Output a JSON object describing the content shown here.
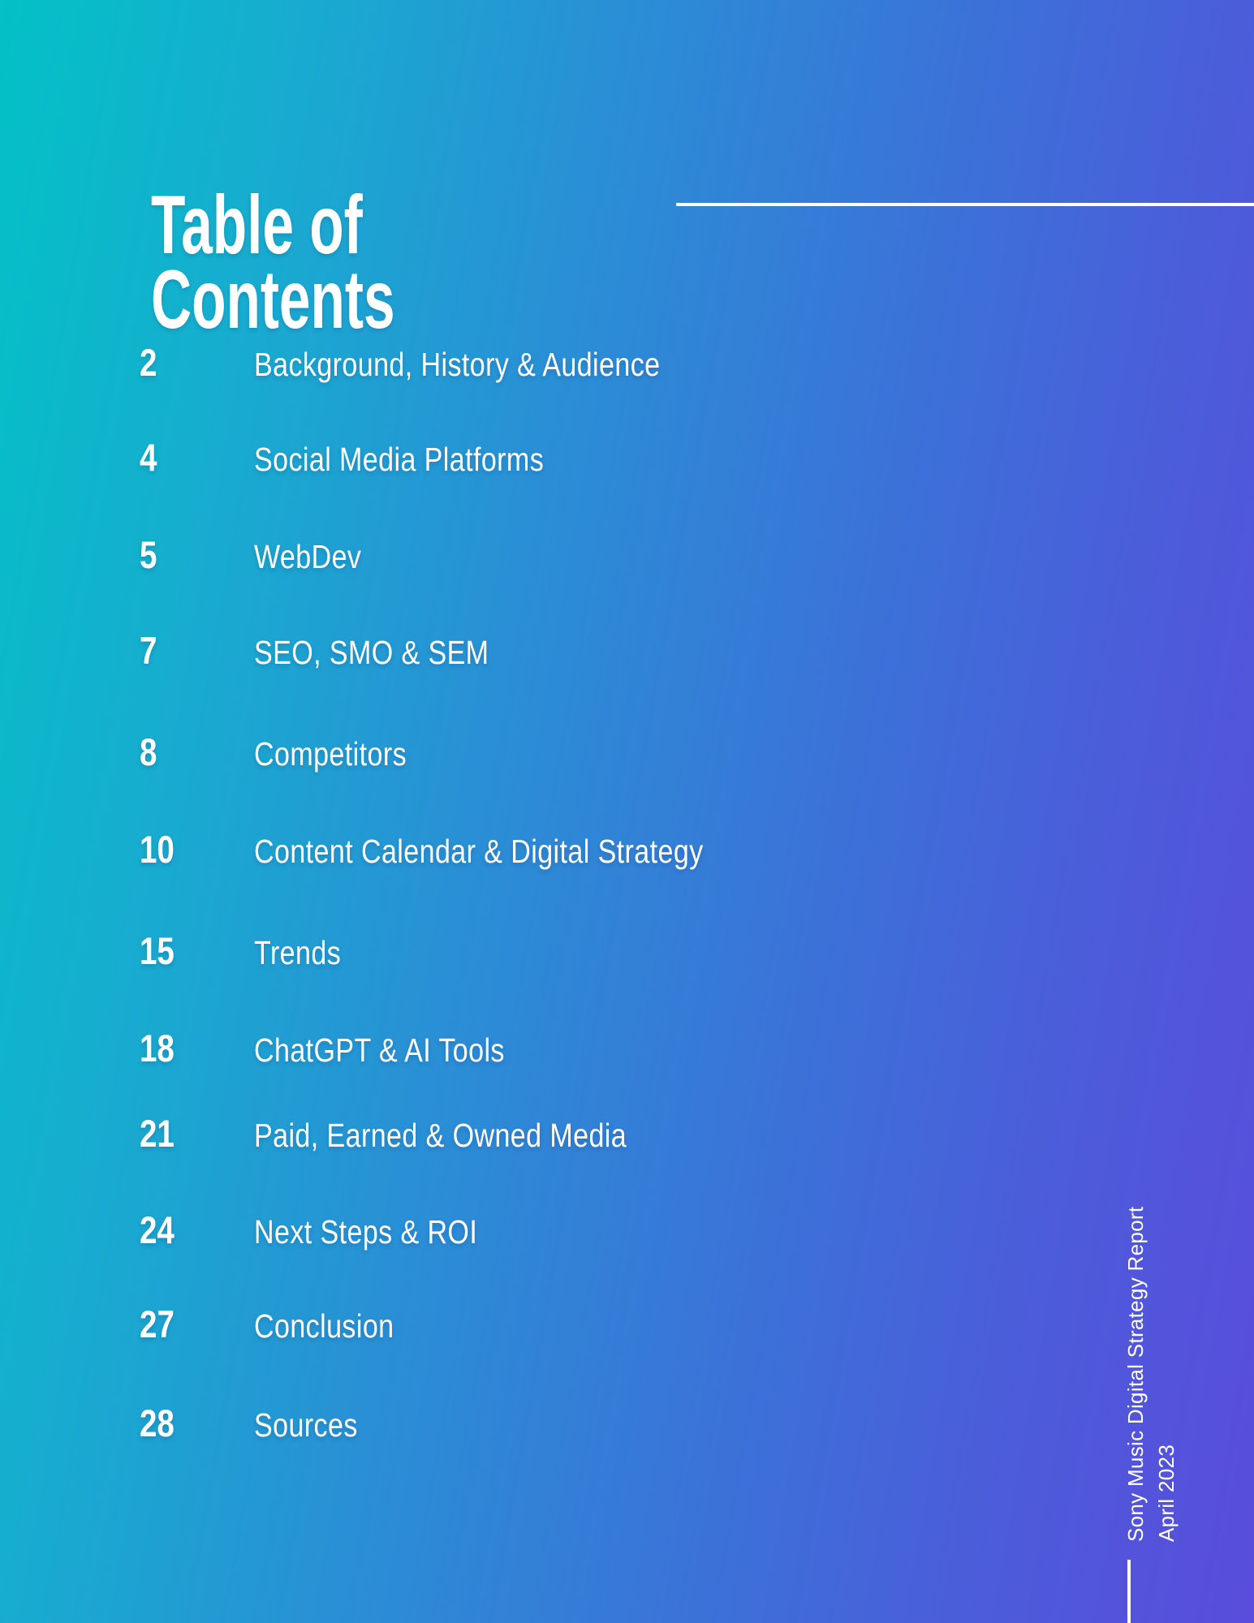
{
  "heading": {
    "full": "Table of Contents",
    "line1": "Table of",
    "line2": "Contents"
  },
  "toc_entries": [
    {
      "page": "2",
      "title": "Background, History & Audience"
    },
    {
      "page": "4",
      "title": "Social Media Platforms"
    },
    {
      "page": "5",
      "title": "WebDev"
    },
    {
      "page": "7",
      "title": "SEO, SMO & SEM"
    },
    {
      "page": "8",
      "title": "Competitors"
    },
    {
      "page": "10",
      "title": "Content Calendar & Digital Strategy"
    },
    {
      "page": "15",
      "title": "Trends"
    },
    {
      "page": "18",
      "title": "ChatGPT & AI Tools"
    },
    {
      "page": "21",
      "title": "Paid, Earned & Owned Media"
    },
    {
      "page": "24",
      "title": "Next Steps & ROI"
    },
    {
      "page": "27",
      "title": "Conclusion"
    },
    {
      "page": "28",
      "title": "Sources"
    }
  ],
  "sidebar_vertical_text": {
    "line1": "Sony Music Digital Strategy Report",
    "line2": "April 2023"
  },
  "colors": {
    "gradient_left_teal": "#03c1c6",
    "gradient_mid_blue": "#2b8dd6",
    "gradient_right_indigo": "#5a4cdc",
    "text": "#ffffff"
  }
}
